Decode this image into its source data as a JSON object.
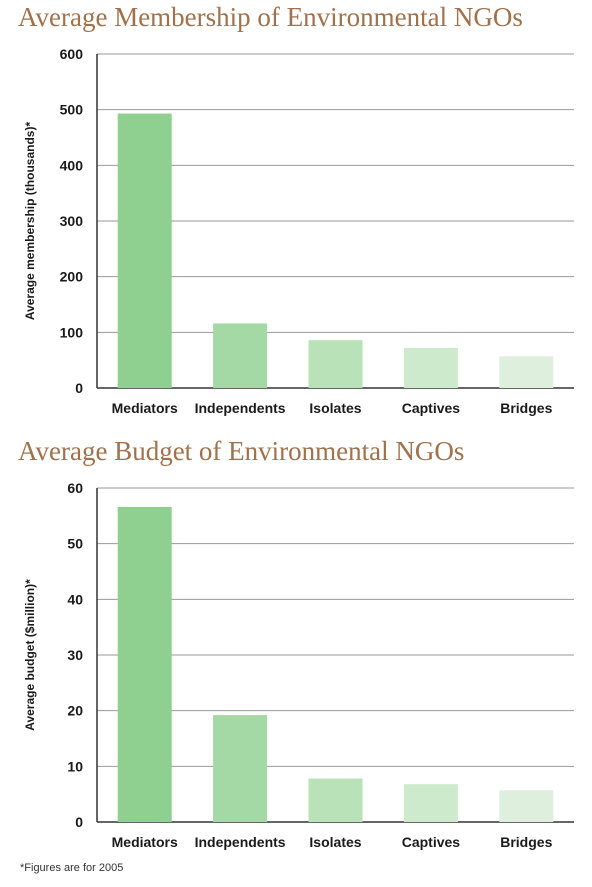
{
  "chart_data": [
    {
      "type": "bar",
      "title": "Average Membership of Environmental NGOs",
      "ylabel": "Average membership (thousands)*",
      "xlabel": "",
      "categories": [
        "Mediators",
        "Independents",
        "Isolates",
        "Captives",
        "Bridges"
      ],
      "values": [
        493,
        116,
        86,
        72,
        57
      ],
      "ylim": [
        0,
        600
      ],
      "yticks": [
        0,
        100,
        200,
        300,
        400,
        500,
        600
      ],
      "grid": true,
      "colors": [
        "#8fcf8f",
        "#a4d8a4",
        "#b9e2b9",
        "#cdeacd",
        "#deefde"
      ]
    },
    {
      "type": "bar",
      "title": "Average Budget of Environmental NGOs",
      "ylabel": "Average budget ($million)*",
      "xlabel": "",
      "categories": [
        "Mediators",
        "Independents",
        "Isolates",
        "Captives",
        "Bridges"
      ],
      "values": [
        56.6,
        19.2,
        7.8,
        6.8,
        5.7
      ],
      "ylim": [
        0,
        60
      ],
      "yticks": [
        0,
        10,
        20,
        30,
        40,
        50,
        60
      ],
      "grid": true,
      "colors": [
        "#8fcf8f",
        "#a4d8a4",
        "#b9e2b9",
        "#cdeacd",
        "#deefde"
      ]
    }
  ],
  "footnote": "*Figures are for 2005"
}
